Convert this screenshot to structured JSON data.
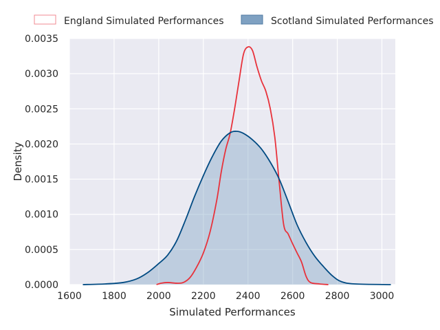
{
  "chart_data": {
    "type": "area",
    "xlabel": "Simulated Performances",
    "ylabel": "Density",
    "xlim": [
      1600,
      3060
    ],
    "ylim": [
      0,
      0.0035
    ],
    "x_ticks": [
      "1600",
      "1800",
      "2000",
      "2200",
      "2400",
      "2600",
      "2800",
      "3000"
    ],
    "y_ticks": [
      "0.0000",
      "0.0005",
      "0.0010",
      "0.0015",
      "0.0020",
      "0.0025",
      "0.0030",
      "0.0035"
    ],
    "grid": true,
    "legend_position": "top",
    "series": [
      {
        "name": "England Simulated Performances",
        "color": "#e8313a",
        "fill": "none",
        "points": [
          [
            1990,
            0
          ],
          [
            2010,
            2e-05
          ],
          [
            2040,
            3e-05
          ],
          [
            2080,
            2e-05
          ],
          [
            2110,
            3e-05
          ],
          [
            2140,
            0.0001
          ],
          [
            2170,
            0.00025
          ],
          [
            2200,
            0.00045
          ],
          [
            2230,
            0.00075
          ],
          [
            2260,
            0.0012
          ],
          [
            2280,
            0.0016
          ],
          [
            2300,
            0.00192
          ],
          [
            2320,
            0.00215
          ],
          [
            2340,
            0.0025
          ],
          [
            2360,
            0.0029
          ],
          [
            2380,
            0.00328
          ],
          [
            2400,
            0.00338
          ],
          [
            2420,
            0.00333
          ],
          [
            2440,
            0.0031
          ],
          [
            2460,
            0.0029
          ],
          [
            2480,
            0.00275
          ],
          [
            2500,
            0.0025
          ],
          [
            2520,
            0.0021
          ],
          [
            2540,
            0.00145
          ],
          [
            2560,
            0.00085
          ],
          [
            2580,
            0.00072
          ],
          [
            2600,
            0.00058
          ],
          [
            2620,
            0.00045
          ],
          [
            2640,
            0.00032
          ],
          [
            2660,
            0.00012
          ],
          [
            2680,
            3e-05
          ],
          [
            2720,
            1e-05
          ],
          [
            2760,
            0
          ]
        ]
      },
      {
        "name": "Scotland Simulated Performances",
        "color": "#004a82",
        "fill": "#8aaac8",
        "points": [
          [
            1660,
            0
          ],
          [
            1760,
            1e-05
          ],
          [
            1840,
            3e-05
          ],
          [
            1900,
            8e-05
          ],
          [
            1950,
            0.00017
          ],
          [
            2000,
            0.0003
          ],
          [
            2040,
            0.00042
          ],
          [
            2080,
            0.00062
          ],
          [
            2120,
            0.00092
          ],
          [
            2160,
            0.00125
          ],
          [
            2200,
            0.00155
          ],
          [
            2240,
            0.00182
          ],
          [
            2280,
            0.00204
          ],
          [
            2320,
            0.00216
          ],
          [
            2350,
            0.00218
          ],
          [
            2380,
            0.00215
          ],
          [
            2420,
            0.00206
          ],
          [
            2460,
            0.00193
          ],
          [
            2500,
            0.00174
          ],
          [
            2540,
            0.0015
          ],
          [
            2580,
            0.00118
          ],
          [
            2620,
            0.00085
          ],
          [
            2660,
            0.0006
          ],
          [
            2700,
            0.0004
          ],
          [
            2740,
            0.00025
          ],
          [
            2780,
            0.00012
          ],
          [
            2820,
            4e-05
          ],
          [
            2880,
            1e-05
          ],
          [
            3040,
            0
          ]
        ]
      }
    ]
  }
}
